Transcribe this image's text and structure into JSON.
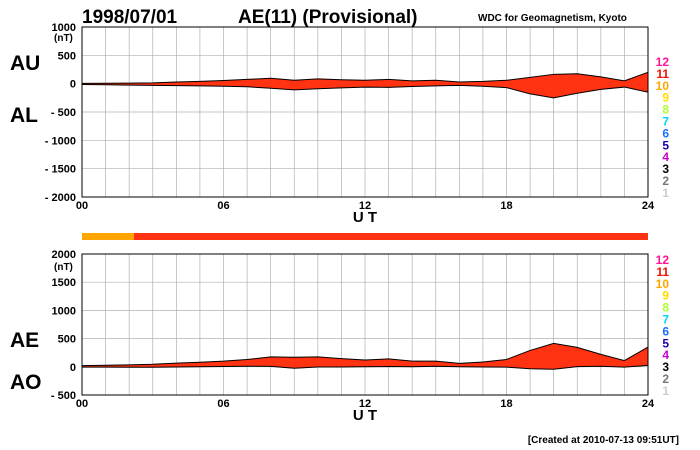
{
  "header": {
    "date": "1998/07/01",
    "title": "AE(11) (Provisional)",
    "source": "WDC for Geomagnetism, Kyoto"
  },
  "footer": {
    "created": "[Created at 2010-07-13 09:51UT]"
  },
  "station_count_legend": [
    {
      "label": "12",
      "color": "#ff1493"
    },
    {
      "label": "11",
      "color": "#ee1100"
    },
    {
      "label": "10",
      "color": "#ffa500"
    },
    {
      "label": "9",
      "color": "#ffdd00"
    },
    {
      "label": "8",
      "color": "#adff2f"
    },
    {
      "label": "7",
      "color": "#00d5ff"
    },
    {
      "label": "6",
      "color": "#1e6fff"
    },
    {
      "label": "5",
      "color": "#1a00b0"
    },
    {
      "label": "4",
      "color": "#cc00cc"
    },
    {
      "label": "3",
      "color": "#000000"
    },
    {
      "label": "2",
      "color": "#777777"
    },
    {
      "label": "1",
      "color": "#cccccc"
    }
  ],
  "fill_colors": {
    "n11": "#ff3311",
    "n10": "#ffa500",
    "line": "#000000"
  },
  "coverage_bar": {
    "unit": "UT hours",
    "segments": [
      {
        "from": 0,
        "to": 2.2,
        "stations": "10"
      },
      {
        "from": 2.2,
        "to": 24,
        "stations": "11"
      }
    ]
  },
  "chart_data": [
    {
      "type": "area",
      "panel": "AU/AL",
      "left_labels": [
        "AU",
        "AL"
      ],
      "xlabel": "U T",
      "ylabel_unit": "(nT)",
      "ylim": [
        -2000,
        1000
      ],
      "yticks": [
        1000,
        500,
        0,
        -500,
        -1000,
        -1500,
        -2000
      ],
      "ytick_labels": [
        "1000",
        "500",
        "0",
        "- 500",
        "- 1000",
        "- 1500",
        "- 2000"
      ],
      "xlim": [
        0,
        24
      ],
      "xticks": [
        0,
        6,
        12,
        18,
        24
      ],
      "xtick_labels": [
        "00",
        "06",
        "12",
        "18",
        "24"
      ],
      "grid": true,
      "x": [
        0,
        1,
        2,
        3,
        4,
        5,
        6,
        7,
        8,
        9,
        10,
        11,
        12,
        13,
        14,
        15,
        16,
        17,
        18,
        19,
        20,
        21,
        22,
        23,
        24
      ],
      "series": [
        {
          "key": "AU",
          "values": [
            5,
            8,
            10,
            15,
            30,
            40,
            55,
            75,
            95,
            60,
            85,
            70,
            60,
            75,
            50,
            60,
            30,
            40,
            60,
            110,
            165,
            175,
            120,
            50,
            200
          ]
        },
        {
          "key": "AL",
          "values": [
            -15,
            -20,
            -25,
            -30,
            -35,
            -40,
            -45,
            -55,
            -80,
            -110,
            -90,
            -75,
            -60,
            -65,
            -50,
            -40,
            -30,
            -45,
            -70,
            -180,
            -250,
            -170,
            -100,
            -60,
            -150
          ]
        }
      ]
    },
    {
      "type": "area",
      "panel": "AE/AO",
      "left_labels": [
        "AE",
        "AO"
      ],
      "xlabel": "U T",
      "ylabel_unit": "(nT)",
      "ylim": [
        -500,
        2000
      ],
      "yticks": [
        2000,
        1500,
        1000,
        500,
        0,
        -500
      ],
      "ytick_labels": [
        "2000",
        "1500",
        "1000",
        "500",
        "0",
        "- 500"
      ],
      "xlim": [
        0,
        24
      ],
      "xticks": [
        0,
        6,
        12,
        18,
        24
      ],
      "xtick_labels": [
        "00",
        "06",
        "12",
        "18",
        "24"
      ],
      "grid": true,
      "x": [
        0,
        1,
        2,
        3,
        4,
        5,
        6,
        7,
        8,
        9,
        10,
        11,
        12,
        13,
        14,
        15,
        16,
        17,
        18,
        19,
        20,
        21,
        22,
        23,
        24
      ],
      "series": [
        {
          "key": "AE",
          "values": [
            20,
            28,
            35,
            45,
            65,
            80,
            100,
            130,
            175,
            170,
            175,
            145,
            120,
            140,
            100,
            100,
            60,
            85,
            130,
            290,
            415,
            345,
            220,
            110,
            350
          ]
        },
        {
          "key": "AO",
          "values": [
            -5,
            -6,
            -8,
            -8,
            -3,
            0,
            5,
            10,
            8,
            -25,
            -3,
            -3,
            0,
            5,
            0,
            10,
            0,
            -3,
            -5,
            -35,
            -43,
            3,
            10,
            -5,
            25
          ]
        }
      ]
    }
  ]
}
